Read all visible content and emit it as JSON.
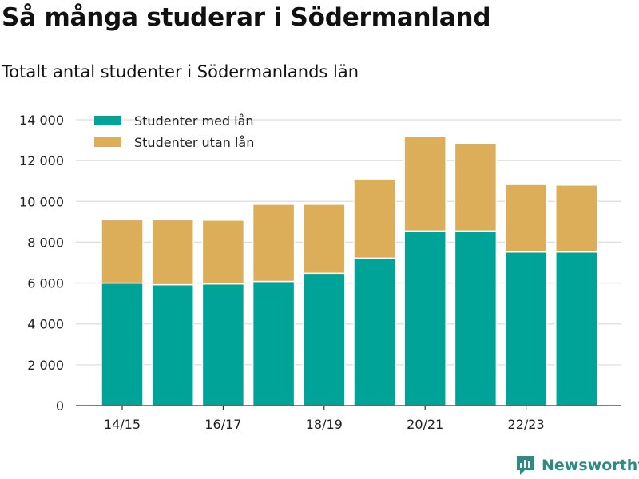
{
  "title": "Så många studerar i Södermanland",
  "subtitle": "Totalt antal studenter i Södermanlands län",
  "brand": "Newsworthy",
  "colors": {
    "med_lan": "#00a398",
    "utan_lan": "#dcae5a",
    "grid": "#dddddd",
    "axis": "#333333",
    "brand": "#2e8b84"
  },
  "chart_data": {
    "type": "bar",
    "stacked": true,
    "categories": [
      "14/15",
      "15/16",
      "16/17",
      "17/18",
      "18/19",
      "19/20",
      "20/21",
      "21/22",
      "22/23",
      "23/24"
    ],
    "x_tick_labels": [
      "14/15",
      "16/17",
      "18/19",
      "20/21",
      "22/23"
    ],
    "series": [
      {
        "name": "Studenter med lån",
        "color": "#00a398",
        "values": [
          6000,
          5920,
          5960,
          6080,
          6480,
          7220,
          8550,
          8550,
          7520,
          7520
        ]
      },
      {
        "name": "Studenter utan lån",
        "color": "#dcae5a",
        "values": [
          3100,
          3180,
          3120,
          3780,
          3380,
          3880,
          4620,
          4280,
          3310,
          3280
        ]
      }
    ],
    "ylim": [
      0,
      14000
    ],
    "y_ticks": [
      0,
      2000,
      4000,
      6000,
      8000,
      10000,
      12000,
      14000
    ],
    "y_tick_labels": [
      "0",
      "2 000",
      "4 000",
      "6 000",
      "8 000",
      "10 000",
      "12 000",
      "14 000"
    ],
    "grid": true,
    "legend_position": "top-left",
    "xlabel": "",
    "ylabel": ""
  }
}
